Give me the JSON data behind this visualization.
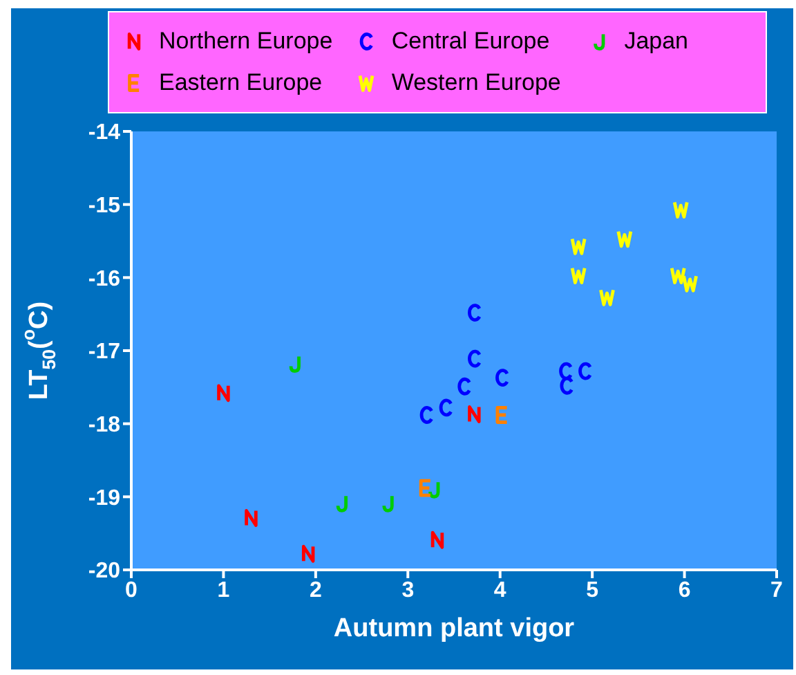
{
  "chart_data": {
    "type": "scatter",
    "xlabel": "Autumn plant vigor",
    "ylabel": "LT$_{50}$($^{o}$C)",
    "xlim": [
      0,
      7
    ],
    "xticks": [
      0,
      1,
      2,
      3,
      4,
      5,
      6,
      7
    ],
    "ylim": [
      -20,
      -14
    ],
    "yticks": [
      -20,
      -19,
      -18,
      -17,
      -16,
      -15,
      -14
    ],
    "grid": false,
    "legend": "top",
    "series": [
      {
        "name": "Northern Europe",
        "color": "#ff0000",
        "x": [
          1.0,
          1.3,
          1.92,
          3.72,
          3.32
        ],
        "values": [
          -17.58,
          -19.29,
          -19.78,
          -17.87,
          -19.59
        ]
      },
      {
        "name": "Central Europe",
        "color": "#0000ff",
        "x": [
          3.72,
          3.72,
          3.61,
          3.41,
          3.2,
          4.02,
          4.71,
          4.92,
          4.72
        ],
        "values": [
          -16.48,
          -17.11,
          -17.49,
          -17.78,
          -17.88,
          -17.37,
          -17.28,
          -17.28,
          -17.48
        ]
      },
      {
        "name": "Japan",
        "color": "#00cc00",
        "x": [
          1.78,
          2.29,
          2.79,
          3.29
        ],
        "values": [
          -17.18,
          -19.09,
          -19.09,
          -18.9
        ]
      },
      {
        "name": "Eastern Europe",
        "color": "#ff8000",
        "x": [
          3.19,
          4.02
        ],
        "values": [
          -18.88,
          -17.88
        ]
      },
      {
        "name": "Western Europe",
        "color": "#ffff00",
        "x": [
          5.96,
          5.35,
          4.85,
          4.85,
          5.16,
          5.93,
          6.06
        ],
        "values": [
          -15.07,
          -15.47,
          -15.57,
          -15.97,
          -16.27,
          -15.97,
          -16.08
        ]
      }
    ]
  }
}
